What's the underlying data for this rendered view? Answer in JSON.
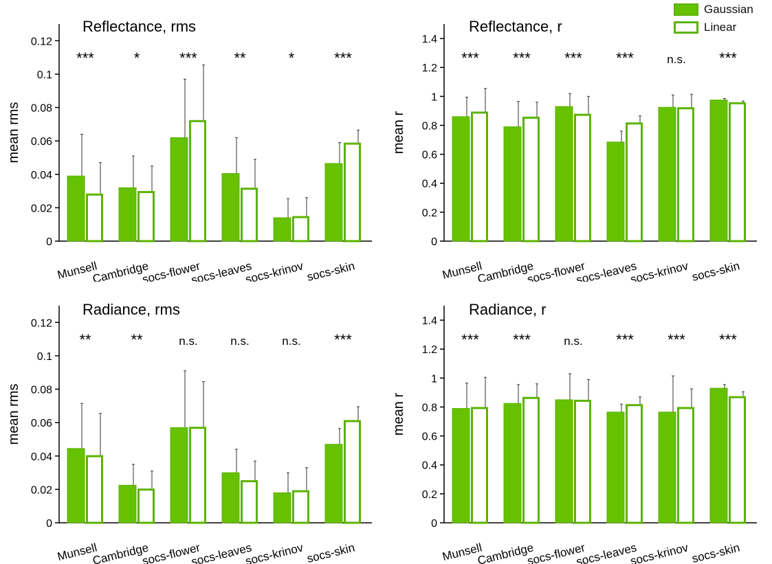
{
  "colors": {
    "fill": "#66c100",
    "edge": "#5cb300",
    "error": "#333333",
    "axis": "#000000"
  },
  "legend": {
    "gaussian_label": "Gaussian",
    "linear_label": "Linear"
  },
  "chart_data": [
    {
      "type": "bar",
      "title": "Reflectance, rms",
      "ylabel": "mean rms",
      "ylim": [
        0,
        0.13
      ],
      "yticks": [
        0,
        0.02,
        0.04,
        0.06,
        0.08,
        0.1,
        0.12
      ],
      "ytick_labels": [
        "0",
        "0.02",
        "0.04",
        "0.06",
        "0.08",
        "0.1",
        "0.12"
      ],
      "categories": [
        "Munsell",
        "Cambridge",
        "socs-flower",
        "socs-leaves",
        "socs-krinov",
        "socs-skin"
      ],
      "significance": [
        "***",
        "*",
        "***",
        "**",
        "*",
        "***"
      ],
      "series": [
        {
          "name": "Gaussian",
          "values": [
            0.039,
            0.032,
            0.062,
            0.0405,
            0.014,
            0.0465
          ],
          "errors": [
            0.025,
            0.019,
            0.035,
            0.0215,
            0.0115,
            0.0125
          ]
        },
        {
          "name": "Linear",
          "values": [
            0.0285,
            0.03,
            0.0725,
            0.032,
            0.015,
            0.059
          ],
          "errors": [
            0.0185,
            0.015,
            0.033,
            0.017,
            0.011,
            0.0075
          ]
        }
      ]
    },
    {
      "type": "bar",
      "title": "Reflectance, r",
      "ylabel": "mean r",
      "ylim": [
        0,
        1.5
      ],
      "yticks": [
        0,
        0.2,
        0.4,
        0.6,
        0.8,
        1.0,
        1.2,
        1.4
      ],
      "ytick_labels": [
        "0",
        "0.2",
        "0.4",
        "0.6",
        "0.8",
        "1",
        "1.2",
        "1.4"
      ],
      "categories": [
        "Munsell",
        "Cambridge",
        "socs-flower",
        "socs-leaves",
        "socs-krinov",
        "socs-skin"
      ],
      "significance": [
        "***",
        "***",
        "***",
        "***",
        "n.s.",
        "***"
      ],
      "series": [
        {
          "name": "Gaussian",
          "values": [
            0.86,
            0.79,
            0.93,
            0.685,
            0.925,
            0.975
          ],
          "errors": [
            0.135,
            0.175,
            0.09,
            0.075,
            0.085,
            0.01
          ]
        },
        {
          "name": "Linear",
          "values": [
            0.895,
            0.86,
            0.88,
            0.82,
            0.925,
            0.96
          ],
          "errors": [
            0.16,
            0.1,
            0.12,
            0.045,
            0.09,
            0.008
          ]
        }
      ]
    },
    {
      "type": "bar",
      "title": "Radiance, rms",
      "ylabel": "mean rms",
      "ylim": [
        0,
        0.13
      ],
      "yticks": [
        0,
        0.02,
        0.04,
        0.06,
        0.08,
        0.1,
        0.12
      ],
      "ytick_labels": [
        "0",
        "0.02",
        "0.04",
        "0.06",
        "0.08",
        "0.1",
        "0.12"
      ],
      "categories": [
        "Munsell",
        "Cambridge",
        "socs-flower",
        "socs-leaves",
        "socs-krinov",
        "socs-skin"
      ],
      "significance": [
        "**",
        "**",
        "n.s.",
        "n.s.",
        "n.s.",
        "***"
      ],
      "series": [
        {
          "name": "Gaussian",
          "values": [
            0.0445,
            0.0225,
            0.057,
            0.03,
            0.018,
            0.047
          ],
          "errors": [
            0.027,
            0.0125,
            0.034,
            0.014,
            0.012,
            0.0095
          ]
        },
        {
          "name": "Linear",
          "values": [
            0.0405,
            0.0205,
            0.0575,
            0.0255,
            0.0195,
            0.0615
          ],
          "errors": [
            0.025,
            0.0105,
            0.027,
            0.0115,
            0.0135,
            0.008
          ]
        }
      ]
    },
    {
      "type": "bar",
      "title": "Radiance, r",
      "ylabel": "mean r",
      "ylim": [
        0,
        1.5
      ],
      "yticks": [
        0,
        0.2,
        0.4,
        0.6,
        0.8,
        1.0,
        1.2,
        1.4
      ],
      "ytick_labels": [
        "0",
        "0.2",
        "0.4",
        "0.6",
        "0.8",
        "1",
        "1.2",
        "1.4"
      ],
      "categories": [
        "Munsell",
        "Cambridge",
        "socs-flower",
        "socs-leaves",
        "socs-krinov",
        "socs-skin"
      ],
      "significance": [
        "***",
        "***",
        "n.s.",
        "***",
        "***",
        "***"
      ],
      "series": [
        {
          "name": "Gaussian",
          "values": [
            0.79,
            0.825,
            0.85,
            0.765,
            0.765,
            0.93
          ],
          "errors": [
            0.175,
            0.13,
            0.18,
            0.055,
            0.25,
            0.025
          ]
        },
        {
          "name": "Linear",
          "values": [
            0.8,
            0.87,
            0.85,
            0.82,
            0.8,
            0.875
          ],
          "errors": [
            0.205,
            0.09,
            0.14,
            0.05,
            0.125,
            0.03
          ]
        }
      ]
    }
  ]
}
